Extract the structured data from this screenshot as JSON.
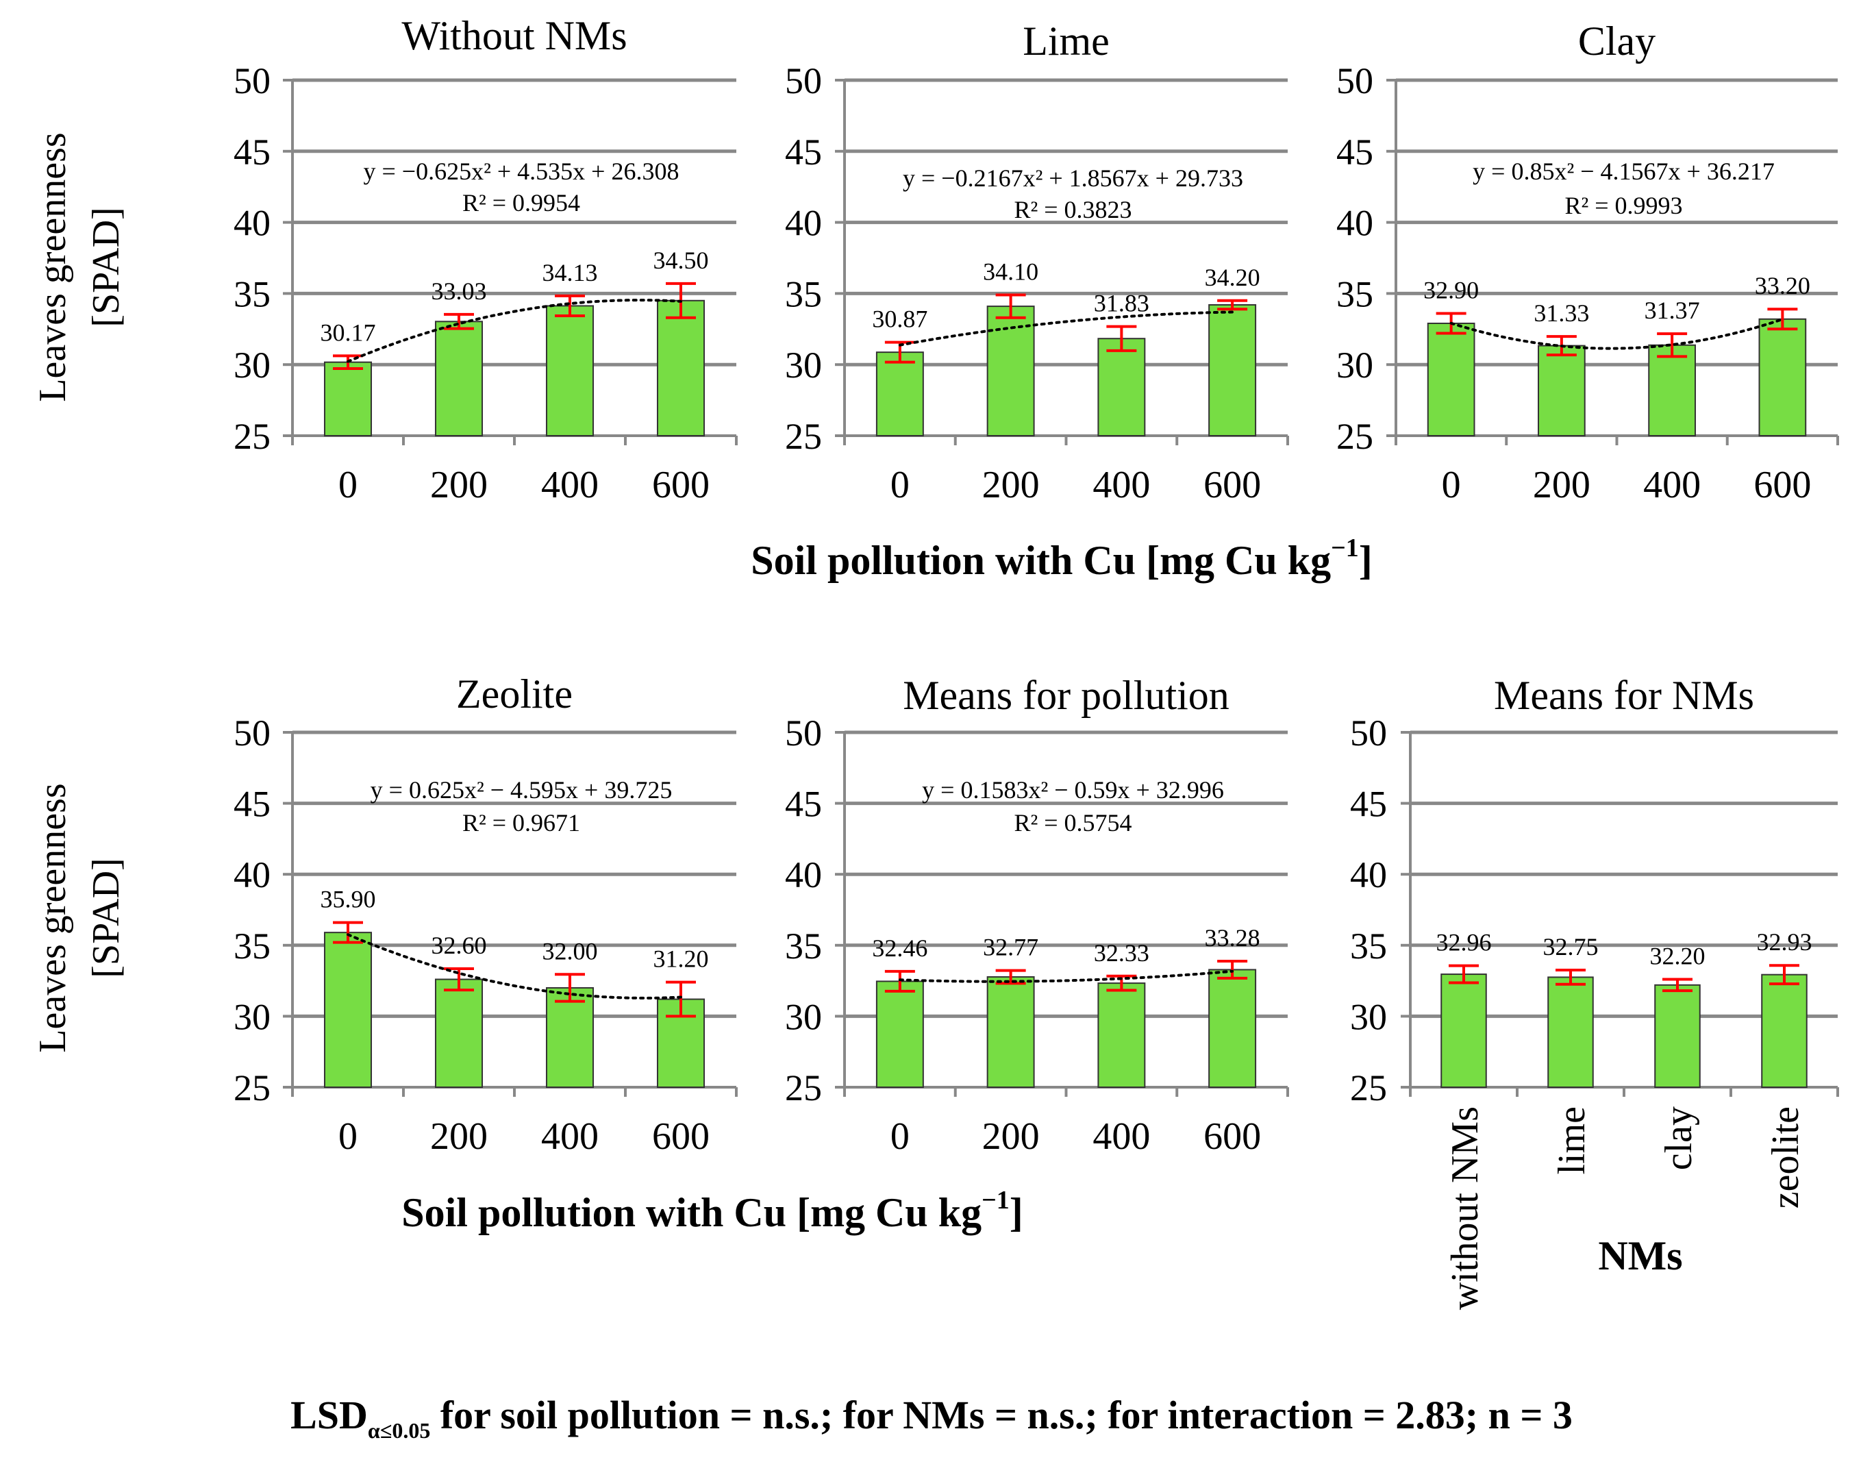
{
  "colors": {
    "bar": "#77dd44",
    "bar_edge": "#333333",
    "error": "#ff0000",
    "grid": "#888888",
    "trend": "#000000"
  },
  "y_axis_label_line1": "Leaves greenness",
  "y_axis_label_line2": "[SPAD]",
  "row1_xlabel": "Soil pollution with Cu [mg Cu kg",
  "row2_xlabel": "Soil pollution with Cu [mg Cu kg",
  "xlabel_sup": "−1",
  "xlabel_end": "]",
  "nms_xlabel": "NMs",
  "footer": {
    "prefix": "LSD",
    "subscript": "α≤0.05",
    "text": " for soil pollution = n.s.; for NMs = n.s.; for interaction = 2.83; n = 3"
  },
  "chart_data": [
    {
      "type": "bar",
      "title": "Without NMs",
      "categories": [
        "0",
        "200",
        "400",
        "600"
      ],
      "values": [
        30.17,
        33.03,
        34.13,
        34.5
      ],
      "value_labels": [
        "30.17",
        "33.03",
        "34.13",
        "34.50"
      ],
      "errors": [
        0.45,
        0.5,
        0.7,
        1.2
      ],
      "y_ticks": [
        "25",
        "30",
        "35",
        "40",
        "45",
        "50"
      ],
      "ylim": [
        25,
        50
      ],
      "trend": {
        "a": -0.625,
        "b": 4.535,
        "c": 26.308
      },
      "equation": "y = −0.625x² + 4.535x + 26.308",
      "r2": "R² = 0.9954"
    },
    {
      "type": "bar",
      "title": "Lime",
      "categories": [
        "0",
        "200",
        "400",
        "600"
      ],
      "values": [
        30.87,
        34.1,
        31.83,
        34.2
      ],
      "value_labels": [
        "30.87",
        "34.10",
        "31.83",
        "34.20"
      ],
      "errors": [
        0.7,
        0.8,
        0.85,
        0.3
      ],
      "y_ticks": [
        "25",
        "30",
        "35",
        "40",
        "45",
        "50"
      ],
      "ylim": [
        25,
        50
      ],
      "trend": {
        "a": -0.2167,
        "b": 1.8567,
        "c": 29.733
      },
      "equation": "y = −0.2167x² + 1.8567x + 29.733",
      "r2": "R² = 0.3823"
    },
    {
      "type": "bar",
      "title": "Clay",
      "categories": [
        "0",
        "200",
        "400",
        "600"
      ],
      "values": [
        32.9,
        31.33,
        31.37,
        33.2
      ],
      "value_labels": [
        "32.90",
        "31.33",
        "31.37",
        "33.20"
      ],
      "errors": [
        0.7,
        0.65,
        0.8,
        0.7
      ],
      "y_ticks": [
        "25",
        "30",
        "35",
        "40",
        "45",
        "50"
      ],
      "ylim": [
        25,
        50
      ],
      "trend": {
        "a": 0.85,
        "b": -4.1567,
        "c": 36.217
      },
      "equation": "y = 0.85x² − 4.1567x + 36.217",
      "r2": "R² = 0.9993"
    },
    {
      "type": "bar",
      "title": "Zeolite",
      "categories": [
        "0",
        "200",
        "400",
        "600"
      ],
      "values": [
        35.9,
        32.6,
        32.0,
        31.2
      ],
      "value_labels": [
        "35.90",
        "32.60",
        "32.00",
        "31.20"
      ],
      "errors": [
        0.7,
        0.75,
        0.95,
        1.2
      ],
      "y_ticks": [
        "25",
        "30",
        "35",
        "40",
        "45",
        "50"
      ],
      "ylim": [
        25,
        50
      ],
      "trend": {
        "a": 0.625,
        "b": -4.595,
        "c": 39.725
      },
      "equation": "y = 0.625x² − 4.595x + 39.725",
      "r2": "R² = 0.9671"
    },
    {
      "type": "bar",
      "title": "Means for pollution",
      "categories": [
        "0",
        "200",
        "400",
        "600"
      ],
      "values": [
        32.46,
        32.77,
        32.33,
        33.28
      ],
      "value_labels": [
        "32.46",
        "32.77",
        "32.33",
        "33.28"
      ],
      "errors": [
        0.7,
        0.45,
        0.5,
        0.6
      ],
      "y_ticks": [
        "25",
        "30",
        "35",
        "40",
        "45",
        "50"
      ],
      "ylim": [
        25,
        50
      ],
      "trend": {
        "a": 0.1583,
        "b": -0.59,
        "c": 32.996
      },
      "equation": "y = 0.1583x² − 0.59x + 32.996",
      "r2": "R² = 0.5754"
    },
    {
      "type": "bar",
      "title": "Means for NMs",
      "categories": [
        "without NMs",
        "lime",
        "clay",
        "zeolite"
      ],
      "values": [
        32.96,
        32.75,
        32.2,
        32.93
      ],
      "value_labels": [
        "32.96",
        "32.75",
        "32.20",
        "32.93"
      ],
      "errors": [
        0.6,
        0.5,
        0.4,
        0.65
      ],
      "y_ticks": [
        "25",
        "30",
        "35",
        "40",
        "45",
        "50"
      ],
      "ylim": [
        25,
        50
      ],
      "trend": null,
      "equation": "",
      "r2": ""
    }
  ]
}
